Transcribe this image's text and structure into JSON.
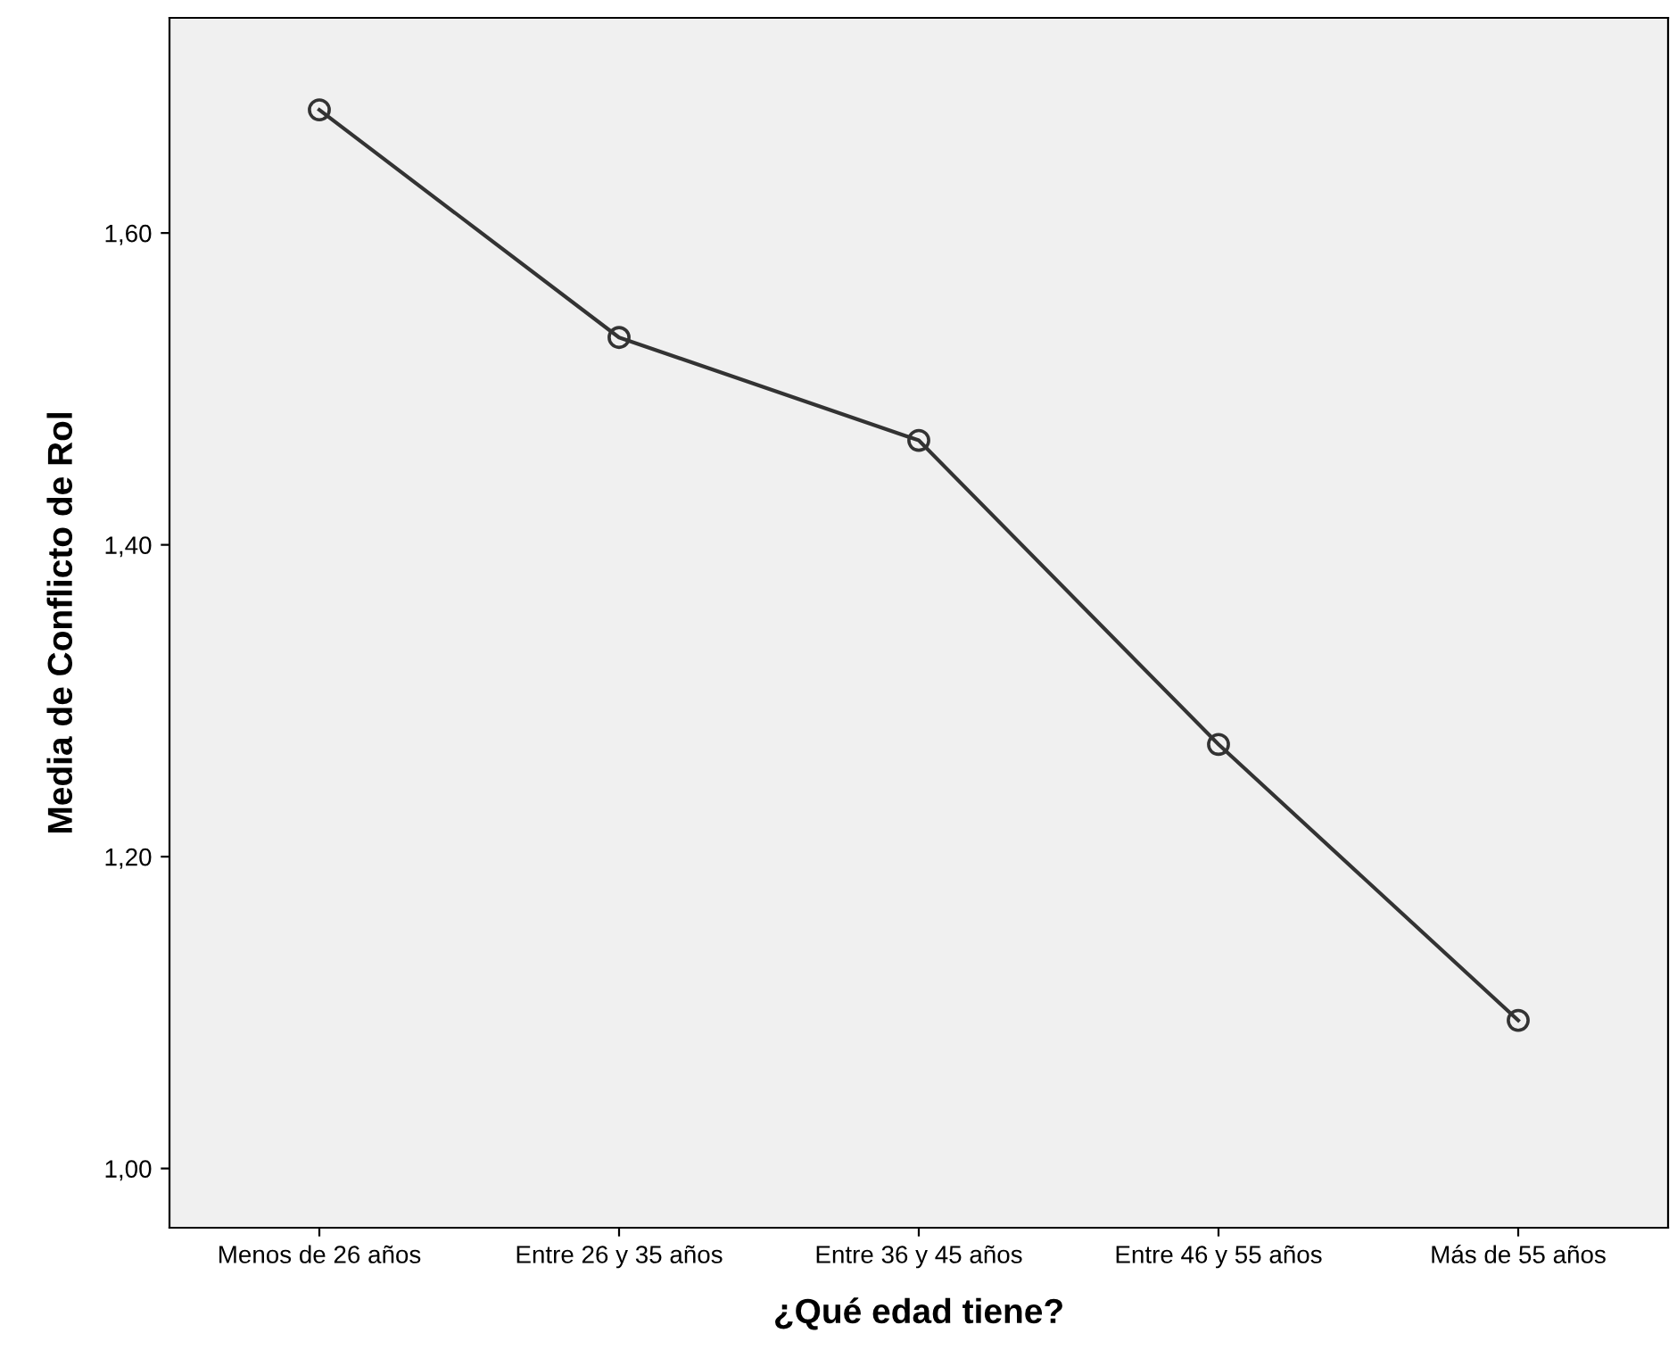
{
  "chart_data": {
    "type": "line",
    "xlabel": "¿Qué edad tiene?",
    "ylabel": "Media de Conflicto de Rol",
    "categories": [
      "Menos de 26 años",
      "Entre 26 y 35 años",
      "Entre 36 y 45 años",
      "Entre 46 y 55 años",
      "Más de 55 años"
    ],
    "series": [
      {
        "color": "#333333",
        "values": [
          1.679,
          1.533,
          1.467,
          1.272,
          1.095
        ]
      }
    ],
    "ylim": [
      0.962,
      1.738
    ],
    "yticks": [
      {
        "value": 1.0,
        "label": "1,00"
      },
      {
        "value": 1.2,
        "label": "1,20"
      },
      {
        "value": 1.4,
        "label": "1,40"
      },
      {
        "value": 1.6,
        "label": "1,60"
      }
    ],
    "marker": "circle",
    "line_style": "solid",
    "grid": false,
    "legend": false
  }
}
